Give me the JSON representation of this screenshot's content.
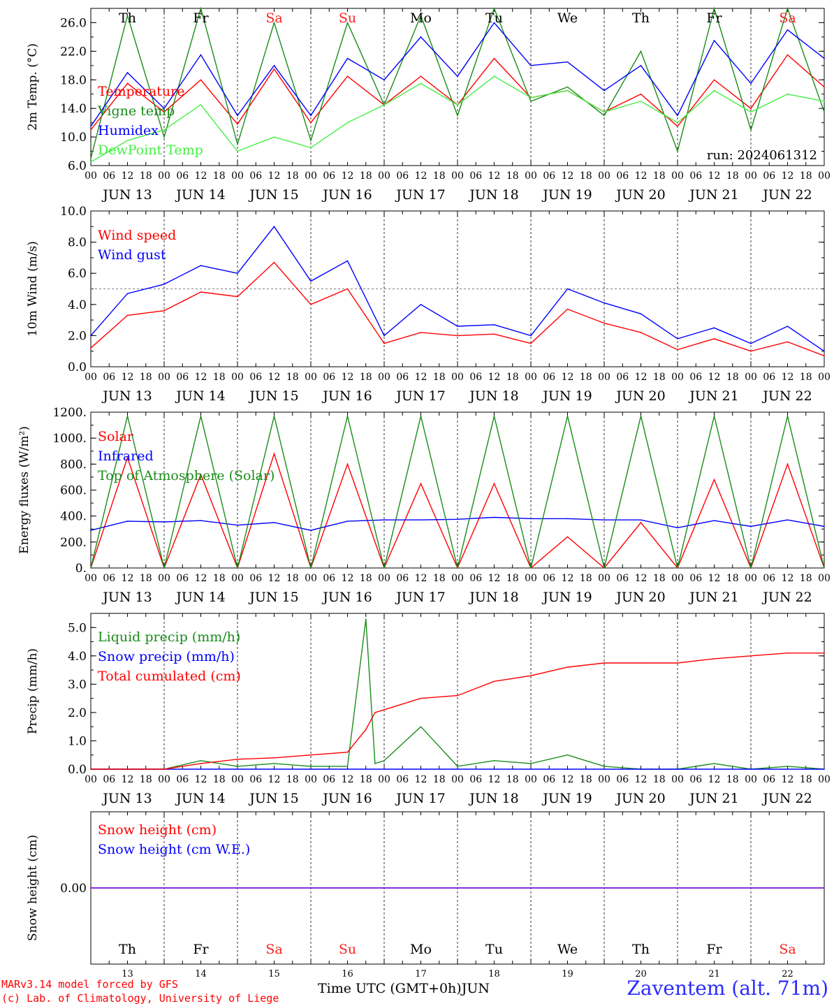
{
  "footer": {
    "model_line": "MARv3.14 model forced by GFS",
    "credit_line": "(c) Lab. of Climatology, University of Liege",
    "time_axis_label": "Time UTC (GMT+0h)",
    "month_label": "JUN",
    "station": "Zaventem (alt. 71m)"
  },
  "axis": {
    "hours": [
      "00",
      "06",
      "12",
      "18"
    ],
    "final_hour": "00",
    "dates": [
      "JUN 13",
      "JUN 14",
      "JUN 15",
      "JUN 16",
      "JUN 17",
      "JUN 18",
      "JUN 19",
      "JUN 20",
      "JUN 21",
      "JUN 22"
    ],
    "day_numbers": [
      "13",
      "14",
      "15",
      "16",
      "17",
      "18",
      "19",
      "20",
      "21",
      "22"
    ],
    "weekdays": [
      "Th",
      "Fr",
      "Sa",
      "Su",
      "Mo",
      "Tu",
      "We",
      "Th",
      "Fr",
      "Sa"
    ],
    "weekend_color": "#ff2020",
    "weekday_color": "#000000"
  },
  "chart_data": [
    {
      "type": "line",
      "ylabel": "2m Temp. (°C)",
      "ylim": [
        6,
        28
      ],
      "yticks": [
        "6.0",
        "10.0",
        "14.0",
        "18.0",
        "22.0",
        "26.0"
      ],
      "annotation": "run: 2024061312",
      "x_hours_from": "2024-06-13 00 UTC",
      "x": [
        0,
        12,
        24,
        36,
        48,
        60,
        72,
        84,
        96,
        108,
        120,
        132,
        144,
        156,
        168,
        180,
        192,
        204,
        216,
        228,
        240
      ],
      "series": [
        {
          "name": "Temperature",
          "color": "#ff0000",
          "values": [
            11.0,
            17.5,
            13.5,
            18.0,
            11.8,
            19.5,
            12.0,
            18.5,
            14.5,
            18.5,
            14.5,
            21.0,
            15.5,
            16.5,
            13.5,
            16.0,
            11.5,
            18.0,
            14.0,
            21.5,
            17.0
          ]
        },
        {
          "name": "Vigne temp",
          "color": "#1a8c1a",
          "values": [
            7.0,
            27.0,
            10.0,
            28.0,
            9.0,
            26.0,
            9.5,
            26.0,
            14.5,
            27.0,
            13.0,
            28.0,
            15.0,
            17.0,
            13.0,
            22.0,
            8.0,
            28.0,
            11.0,
            28.0,
            13.5
          ]
        },
        {
          "name": "Humidex",
          "color": "#0000ff",
          "values": [
            11.5,
            19.0,
            14.0,
            21.5,
            13.0,
            20.0,
            13.0,
            21.0,
            18.0,
            24.0,
            18.5,
            26.0,
            20.0,
            20.5,
            16.5,
            20.0,
            13.0,
            23.5,
            17.5,
            25.0,
            21.0
          ]
        },
        {
          "name": "DewPoint Temp",
          "color": "#44ee44",
          "values": [
            6.5,
            9.5,
            11.0,
            14.5,
            8.0,
            10.0,
            8.5,
            12.0,
            14.5,
            17.5,
            14.5,
            18.5,
            15.5,
            16.5,
            13.5,
            15.0,
            12.0,
            16.5,
            13.5,
            16.0,
            15.0
          ]
        }
      ]
    },
    {
      "type": "line",
      "ylabel": "10m Wind (m/s)",
      "ylim": [
        0,
        10
      ],
      "yticks": [
        "0.0",
        "2.0",
        "4.0",
        "6.0",
        "8.0",
        "10.0"
      ],
      "reference_line": 5,
      "x": [
        0,
        12,
        24,
        36,
        48,
        60,
        72,
        84,
        96,
        108,
        120,
        132,
        144,
        156,
        168,
        180,
        192,
        204,
        216,
        228,
        240
      ],
      "series": [
        {
          "name": "Wind speed",
          "color": "#ff0000",
          "values": [
            1.2,
            3.3,
            3.6,
            4.8,
            4.5,
            6.7,
            4.0,
            5.0,
            1.5,
            2.2,
            2.0,
            2.1,
            1.5,
            3.7,
            2.8,
            2.2,
            1.1,
            1.8,
            1.0,
            1.6,
            0.7
          ]
        },
        {
          "name": "Wind gust",
          "color": "#0000ff",
          "values": [
            2.0,
            4.7,
            5.3,
            6.5,
            6.0,
            9.0,
            5.5,
            6.8,
            2.0,
            4.0,
            2.6,
            2.7,
            2.0,
            5.0,
            4.1,
            3.4,
            1.8,
            2.5,
            1.5,
            2.6,
            1.0
          ]
        }
      ]
    },
    {
      "type": "line",
      "ylabel": "Energy fluxes (W/m²)",
      "ylim": [
        0,
        1200
      ],
      "yticks": [
        "0.",
        "200.",
        "400.",
        "600.",
        "800.",
        "1000.",
        "1200."
      ],
      "x": [
        0,
        12,
        24,
        36,
        48,
        60,
        72,
        84,
        96,
        108,
        120,
        132,
        144,
        156,
        168,
        180,
        192,
        204,
        216,
        228,
        240
      ],
      "series": [
        {
          "name": "Solar",
          "color": "#ff0000",
          "values": [
            0,
            850,
            0,
            720,
            0,
            880,
            0,
            800,
            0,
            650,
            0,
            650,
            0,
            240,
            0,
            350,
            0,
            680,
            0,
            800,
            0
          ]
        },
        {
          "name": "Infrared",
          "color": "#0000ff",
          "values": [
            290,
            360,
            355,
            365,
            330,
            350,
            290,
            360,
            370,
            370,
            375,
            390,
            380,
            380,
            370,
            370,
            310,
            365,
            320,
            370,
            320
          ]
        },
        {
          "name": "Top of Atmosphere (Solar)",
          "color": "#1a8c1a",
          "values": [
            0,
            1170,
            0,
            1170,
            0,
            1170,
            0,
            1170,
            0,
            1170,
            0,
            1170,
            0,
            1170,
            0,
            1170,
            0,
            1170,
            0,
            1170,
            0
          ]
        }
      ]
    },
    {
      "type": "line",
      "ylabel": "Precip (mm/h)",
      "ylim": [
        0,
        5.5
      ],
      "yticks": [
        "0.0",
        "1.0",
        "2.0",
        "3.0",
        "4.0",
        "5.0"
      ],
      "x": [
        0,
        12,
        24,
        36,
        48,
        60,
        72,
        84,
        90,
        93,
        96,
        108,
        120,
        132,
        144,
        156,
        168,
        180,
        192,
        204,
        216,
        228,
        240
      ],
      "series": [
        {
          "name": "Liquid precip (mm/h)",
          "color": "#1a8c1a",
          "values": [
            0,
            0,
            0,
            0.3,
            0.1,
            0.2,
            0.1,
            0.1,
            5.3,
            0.2,
            0.3,
            1.5,
            0.1,
            0.3,
            0.2,
            0.5,
            0.1,
            0,
            0,
            0.2,
            0,
            0.1,
            0
          ]
        },
        {
          "name": "Snow precip (mm/h)",
          "color": "#0000ff",
          "values": [
            0,
            0,
            0,
            0,
            0,
            0,
            0,
            0,
            0,
            0,
            0,
            0,
            0,
            0,
            0,
            0,
            0,
            0,
            0,
            0,
            0,
            0,
            0
          ]
        },
        {
          "name": "Total cumulated (cm)",
          "color": "#ff0000",
          "values": [
            0,
            0,
            0,
            0.2,
            0.35,
            0.4,
            0.5,
            0.6,
            1.4,
            2.0,
            2.1,
            2.5,
            2.6,
            3.1,
            3.3,
            3.6,
            3.75,
            3.75,
            3.75,
            3.9,
            4.0,
            4.1,
            4.1
          ]
        }
      ]
    },
    {
      "type": "line",
      "ylabel": "Snow height (cm)",
      "yticks": [
        "0.00"
      ],
      "x": [
        0,
        240
      ],
      "series": [
        {
          "name": "Snow height (cm)",
          "color": "#ff0000",
          "values": [
            0,
            0
          ]
        },
        {
          "name": "Snow height (cm W.E.)",
          "color": "#0000ff",
          "values": [
            0,
            0
          ]
        }
      ]
    }
  ]
}
